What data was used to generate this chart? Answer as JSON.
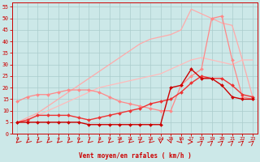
{
  "background_color": "#cce8e8",
  "grid_color": "#aacccc",
  "xlabel": "Vent moyen/en rafales ( km/h )",
  "xlim": [
    -0.5,
    23.5
  ],
  "ylim": [
    0,
    57
  ],
  "yticks": [
    0,
    5,
    10,
    15,
    20,
    25,
    30,
    35,
    40,
    45,
    50,
    55
  ],
  "xticks": [
    0,
    1,
    2,
    3,
    4,
    5,
    6,
    7,
    8,
    9,
    10,
    11,
    12,
    13,
    14,
    15,
    16,
    17,
    18,
    19,
    20,
    21,
    22,
    23
  ],
  "series": [
    {
      "x": [
        0,
        1,
        2,
        3,
        4,
        5,
        6,
        7,
        8,
        9,
        10,
        11,
        12,
        13,
        14,
        15,
        16,
        17,
        18,
        19,
        20,
        21,
        22,
        23
      ],
      "y": [
        5,
        7,
        9,
        12,
        15,
        18,
        21,
        24,
        27,
        30,
        33,
        36,
        39,
        41,
        42,
        43,
        45,
        54,
        52,
        50,
        48,
        47,
        32,
        16
      ],
      "color": "#ffaaaa",
      "lw": 0.9,
      "marker": null,
      "ms": 0,
      "alpha": 1.0
    },
    {
      "x": [
        0,
        1,
        2,
        3,
        4,
        5,
        6,
        7,
        8,
        9,
        10,
        11,
        12,
        13,
        14,
        15,
        16,
        17,
        18,
        19,
        20,
        21,
        22,
        23
      ],
      "y": [
        5,
        6,
        8,
        10,
        12,
        14,
        16,
        18,
        20,
        21,
        22,
        23,
        24,
        25,
        26,
        28,
        30,
        32,
        33,
        32,
        31,
        30,
        32,
        32
      ],
      "color": "#ffbbbb",
      "lw": 0.9,
      "marker": null,
      "ms": 0,
      "alpha": 1.0
    },
    {
      "x": [
        0,
        1,
        2,
        3,
        4,
        5,
        6,
        7,
        8,
        9,
        10,
        11,
        12,
        13,
        14,
        15,
        16,
        17,
        18,
        19,
        20,
        21,
        22,
        23
      ],
      "y": [
        14,
        16,
        17,
        17,
        18,
        19,
        19,
        19,
        18,
        16,
        14,
        13,
        12,
        11,
        10,
        10,
        21,
        25,
        28,
        50,
        51,
        32,
        16,
        15
      ],
      "color": "#ff8888",
      "lw": 0.9,
      "marker": "D",
      "ms": 2.0,
      "alpha": 1.0
    },
    {
      "x": [
        0,
        1,
        2,
        3,
        4,
        5,
        6,
        7,
        8,
        9,
        10,
        11,
        12,
        13,
        14,
        15,
        16,
        17,
        18,
        19,
        20,
        21,
        22,
        23
      ],
      "y": [
        5,
        6,
        8,
        8,
        8,
        8,
        7,
        6,
        7,
        8,
        9,
        10,
        11,
        13,
        14,
        15,
        18,
        22,
        25,
        24,
        24,
        21,
        17,
        16
      ],
      "color": "#ee3333",
      "lw": 1.0,
      "marker": "D",
      "ms": 2.0,
      "alpha": 1.0
    },
    {
      "x": [
        0,
        1,
        2,
        3,
        4,
        5,
        6,
        7,
        8,
        9,
        10,
        11,
        12,
        13,
        14,
        15,
        16,
        17,
        18,
        19,
        20,
        21,
        22,
        23
      ],
      "y": [
        5,
        5,
        5,
        5,
        5,
        5,
        5,
        4,
        4,
        4,
        4,
        4,
        4,
        4,
        4,
        20,
        21,
        28,
        24,
        24,
        21,
        16,
        15,
        15
      ],
      "color": "#cc0000",
      "lw": 1.0,
      "marker": "D",
      "ms": 2.0,
      "alpha": 1.0
    }
  ],
  "wind_arrow_angles": [
    225,
    225,
    225,
    225,
    225,
    225,
    225,
    225,
    225,
    225,
    225,
    225,
    225,
    225,
    180,
    160,
    135,
    90,
    45,
    45,
    45,
    45,
    45,
    45
  ],
  "arrow_color": "#cc0000",
  "tick_color": "#cc0000",
  "xlabel_color": "#cc0000",
  "spine_color": "#cc0000"
}
